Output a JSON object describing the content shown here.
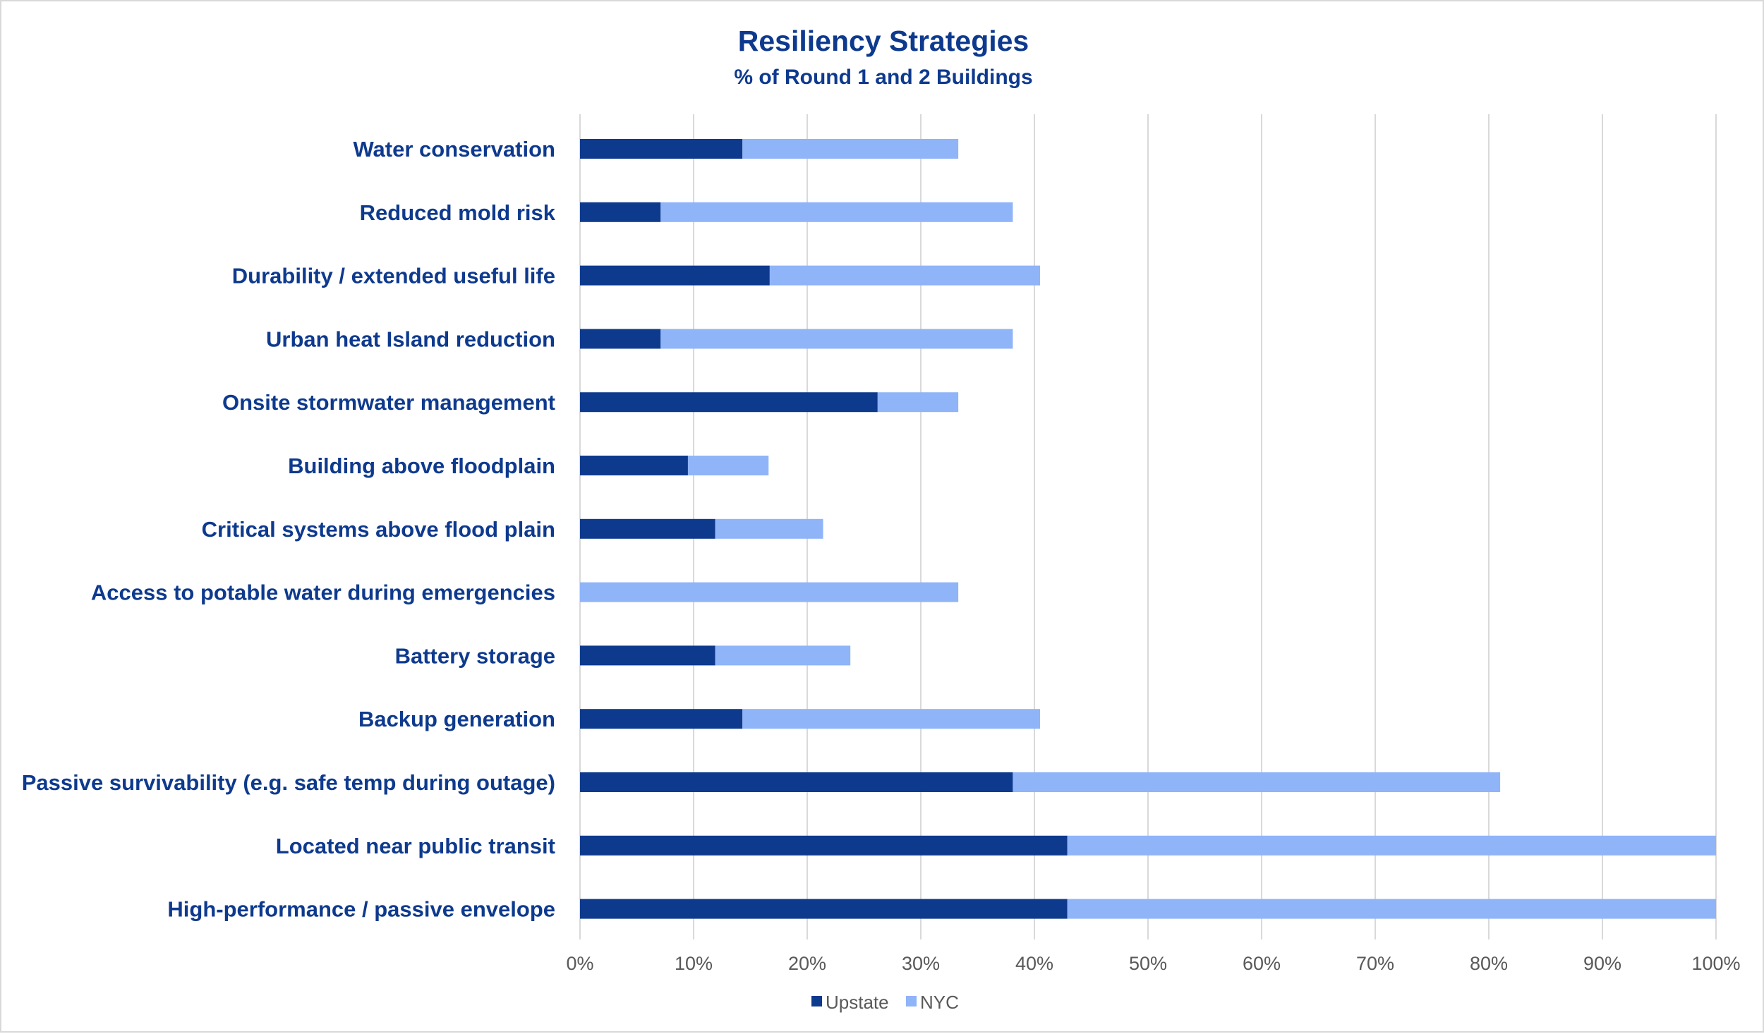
{
  "chart_data": {
    "type": "bar",
    "orientation": "horizontal",
    "stacked": true,
    "title": "Resiliency Strategies",
    "subtitle": "% of Round 1 and 2 Buildings",
    "categories": [
      "Water conservation",
      "Reduced mold risk",
      "Durability / extended useful life",
      "Urban heat Island reduction",
      "Onsite stormwater management",
      "Building above floodplain",
      "Critical systems above flood plain",
      "Access to potable water during emergencies",
      "Battery storage",
      "Backup generation",
      "Passive survivability (e.g. safe temp during outage)",
      "Located near public transit",
      "High-performance / passive envelope"
    ],
    "series": [
      {
        "name": "Upstate",
        "color": "#0e3a8e",
        "values": [
          14.3,
          7.1,
          16.7,
          7.1,
          26.2,
          9.5,
          11.9,
          0,
          11.9,
          14.3,
          38.1,
          42.9,
          42.9
        ]
      },
      {
        "name": "NYC",
        "color": "#8fb4f8",
        "values": [
          19.0,
          31.0,
          23.8,
          31.0,
          7.1,
          7.1,
          9.5,
          33.3,
          11.9,
          26.2,
          42.9,
          57.1,
          57.1
        ]
      }
    ],
    "xlim": [
      0,
      100
    ],
    "xticks": [
      "0%",
      "10%",
      "20%",
      "30%",
      "40%",
      "50%",
      "60%",
      "70%",
      "80%",
      "90%",
      "100%"
    ],
    "grid": true,
    "legend": "bottom",
    "colors": {
      "gridline": "#d9d9d9",
      "text": "#0e3a8e",
      "tick_text": "#595959"
    }
  }
}
